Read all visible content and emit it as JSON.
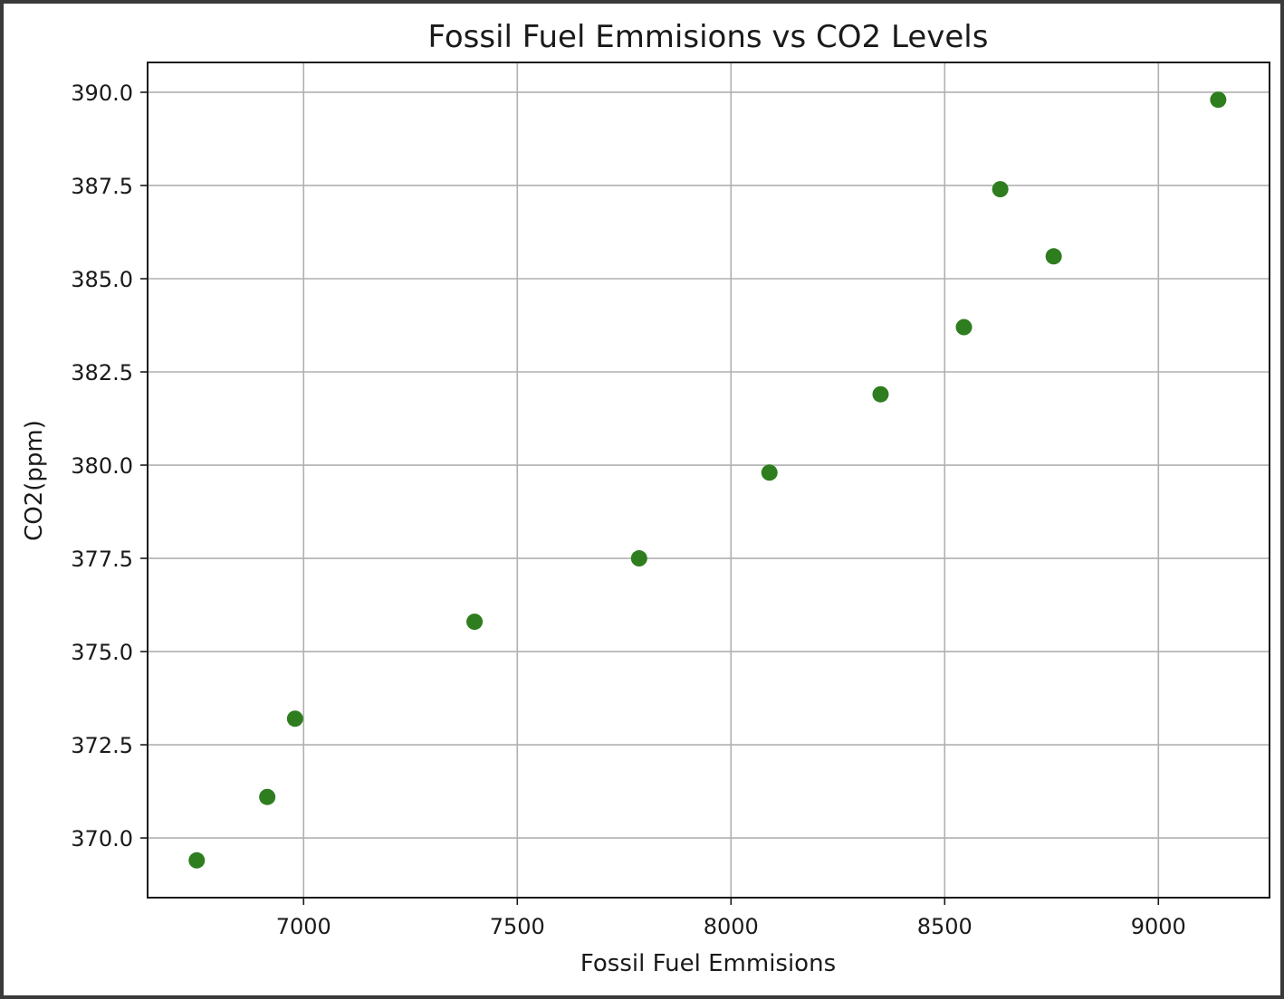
{
  "chart_data": {
    "type": "scatter",
    "title": "Fossil Fuel Emmisions vs CO2 Levels",
    "xlabel": "Fossil Fuel Emmisions",
    "ylabel": "CO2(ppm)",
    "xlim": [
      6635,
      9260
    ],
    "ylim": [
      368.4,
      390.8
    ],
    "xticks": [
      7000,
      7500,
      8000,
      8500,
      9000
    ],
    "xtick_labels": [
      "7000",
      "7500",
      "8000",
      "8500",
      "9000"
    ],
    "yticks": [
      370.0,
      372.5,
      375.0,
      377.5,
      380.0,
      382.5,
      385.0,
      387.5,
      390.0
    ],
    "ytick_labels": [
      "370.0",
      "372.5",
      "375.0",
      "377.5",
      "380.0",
      "382.5",
      "385.0",
      "387.5",
      "390.0"
    ],
    "grid": true,
    "marker_color": "#2e7d1f",
    "series": [
      {
        "x": [
          6750,
          6915,
          6980,
          7400,
          7785,
          8090,
          8350,
          8545,
          8630,
          8755,
          9140
        ],
        "y": [
          369.4,
          371.1,
          373.2,
          375.8,
          377.5,
          379.8,
          381.9,
          383.7,
          387.4,
          385.6,
          389.8
        ]
      }
    ]
  }
}
